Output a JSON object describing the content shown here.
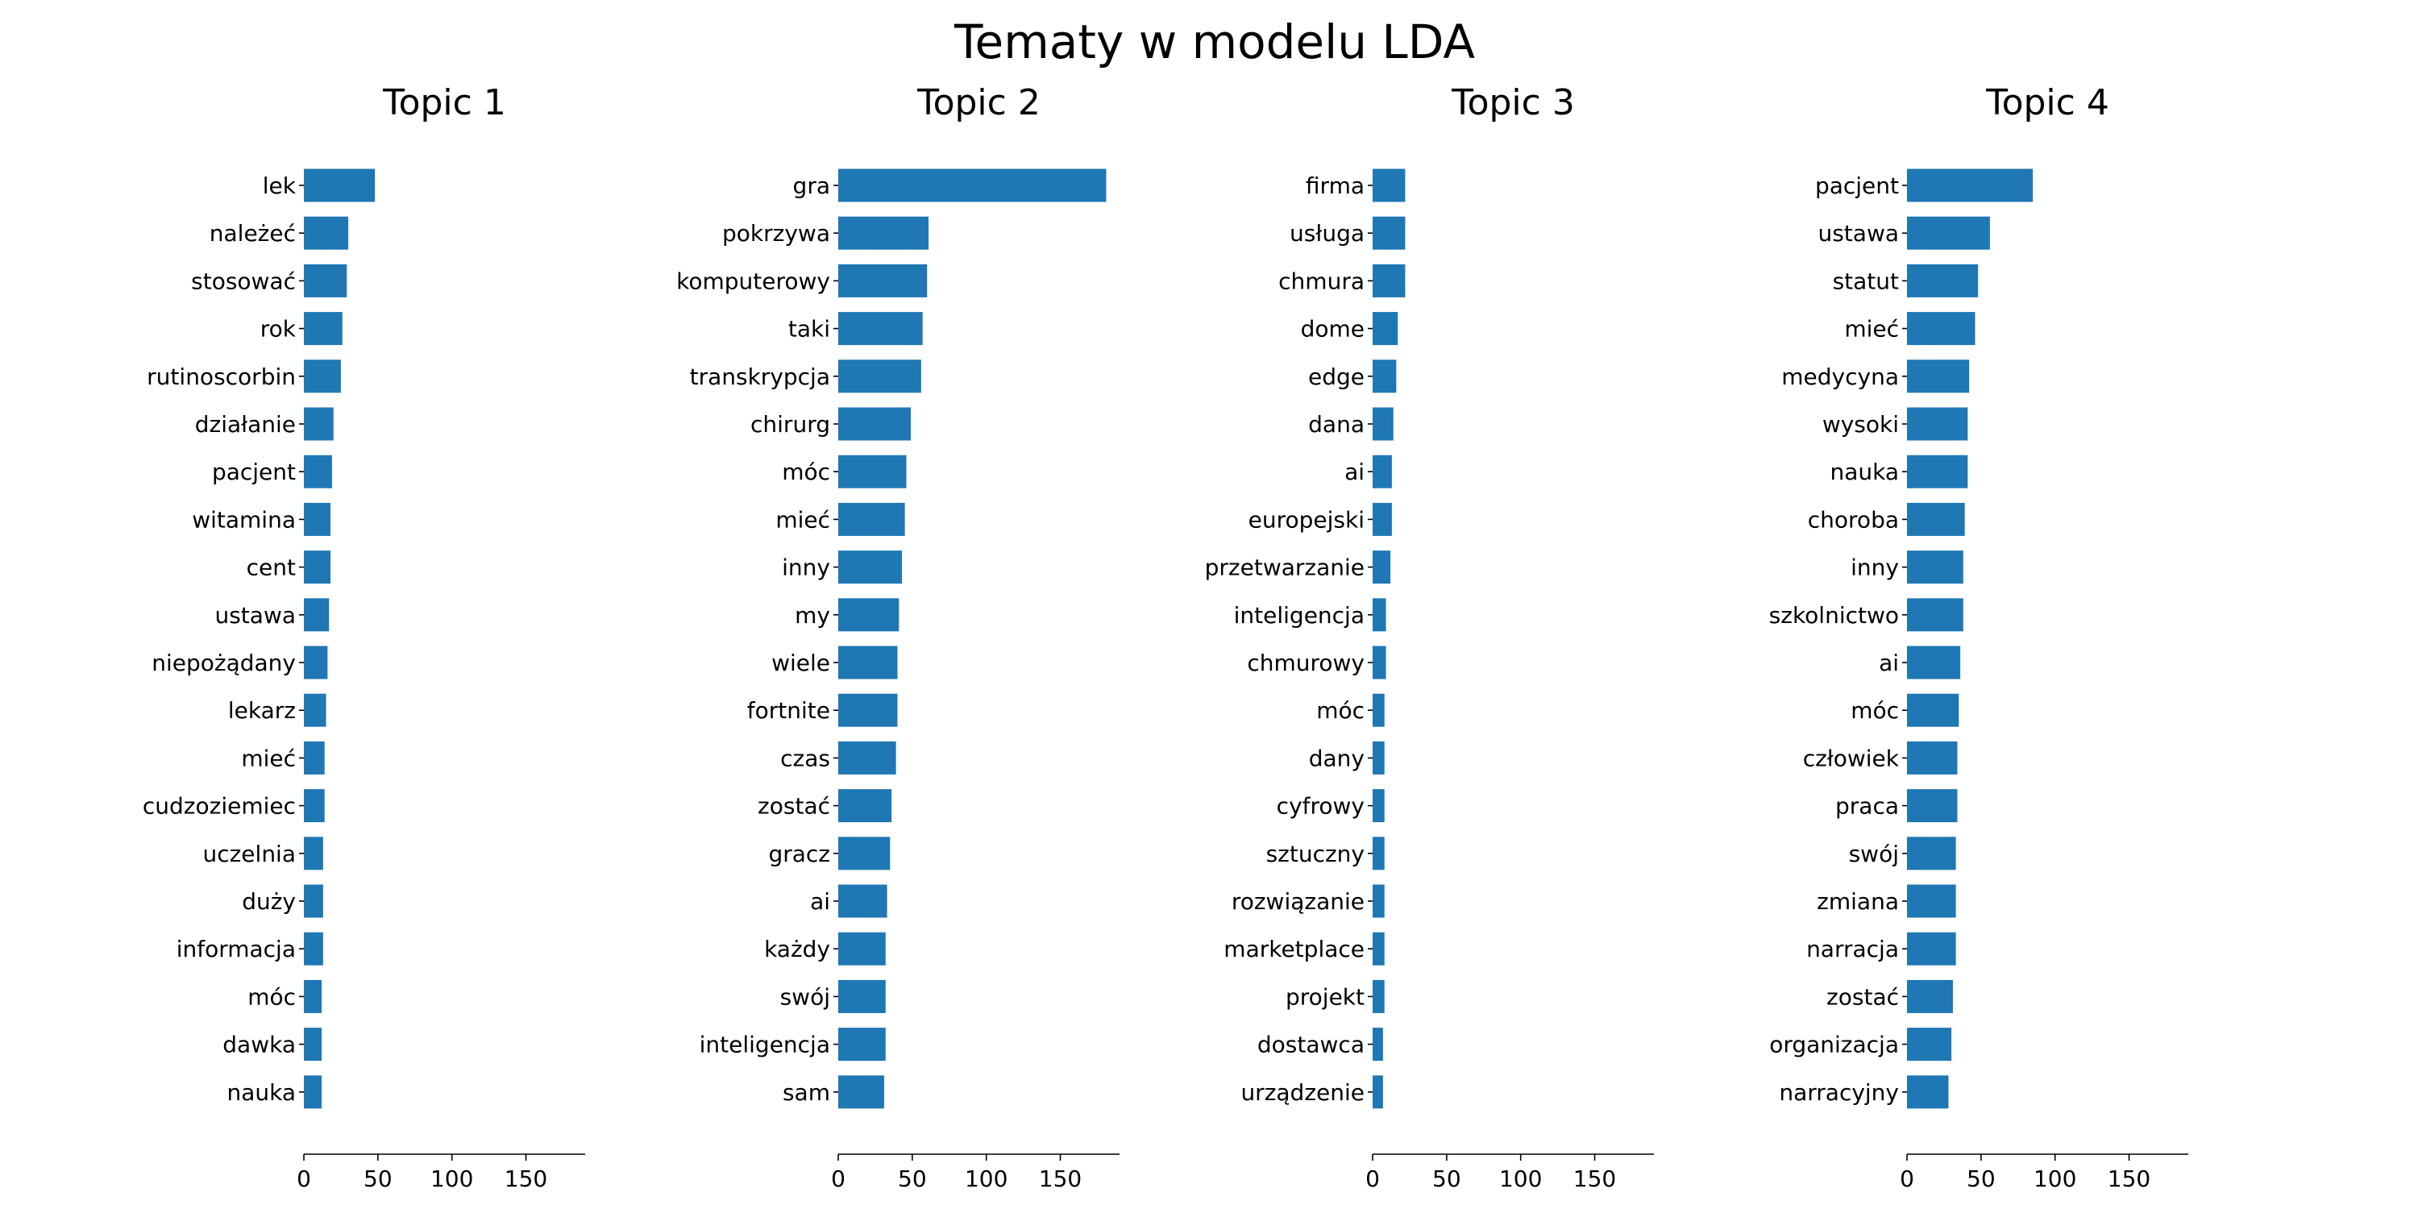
{
  "title": "Tematy w modelu LDA",
  "colors": {
    "bar": "#1f77b4"
  },
  "chart_data": [
    {
      "type": "bar",
      "orientation": "horizontal",
      "title": "Topic 1",
      "xlim": [
        0,
        190
      ],
      "xticks": [
        0,
        50,
        100,
        150
      ],
      "grid": false,
      "categories": [
        "lek",
        "należeć",
        "stosować",
        "rok",
        "rutinoscorbin",
        "działanie",
        "pacjent",
        "witamina",
        "cent",
        "ustawa",
        "niepożądany",
        "lekarz",
        "mieć",
        "cudzoziemiec",
        "uczelnia",
        "duży",
        "informacja",
        "móc",
        "dawka",
        "nauka"
      ],
      "values": [
        48,
        30,
        29,
        26,
        25,
        20,
        19,
        18,
        18,
        17,
        16,
        15,
        14,
        14,
        13,
        13,
        13,
        12,
        12,
        12
      ]
    },
    {
      "type": "bar",
      "orientation": "horizontal",
      "title": "Topic 2",
      "xlim": [
        0,
        190
      ],
      "xticks": [
        0,
        50,
        100,
        150
      ],
      "grid": false,
      "categories": [
        "gra",
        "pokrzywa",
        "komputerowy",
        "taki",
        "transkrypcja",
        "chirurg",
        "móc",
        "mieć",
        "inny",
        "my",
        "wiele",
        "fortnite",
        "czas",
        "zostać",
        "gracz",
        "ai",
        "każdy",
        "swój",
        "inteligencja",
        "sam"
      ],
      "values": [
        181,
        61,
        60,
        57,
        56,
        49,
        46,
        45,
        43,
        41,
        40,
        40,
        39,
        36,
        35,
        33,
        32,
        32,
        32,
        31
      ]
    },
    {
      "type": "bar",
      "orientation": "horizontal",
      "title": "Topic 3",
      "xlim": [
        0,
        190
      ],
      "xticks": [
        0,
        50,
        100,
        150
      ],
      "grid": false,
      "categories": [
        "firma",
        "usługa",
        "chmura",
        "dome",
        "edge",
        "dana",
        "ai",
        "europejski",
        "przetwarzanie",
        "inteligencja",
        "chmurowy",
        "móc",
        "dany",
        "cyfrowy",
        "sztuczny",
        "rozwiązanie",
        "marketplace",
        "projekt",
        "dostawca",
        "urządzenie"
      ],
      "values": [
        22,
        22,
        22,
        17,
        16,
        14,
        13,
        13,
        12,
        9,
        9,
        8,
        8,
        8,
        8,
        8,
        8,
        8,
        7,
        7
      ]
    },
    {
      "type": "bar",
      "orientation": "horizontal",
      "title": "Topic 4",
      "xlim": [
        0,
        190
      ],
      "xticks": [
        0,
        50,
        100,
        150
      ],
      "grid": false,
      "categories": [
        "pacjent",
        "ustawa",
        "statut",
        "mieć",
        "medycyna",
        "wysoki",
        "nauka",
        "choroba",
        "inny",
        "szkolnictwo",
        "ai",
        "móc",
        "człowiek",
        "praca",
        "swój",
        "zmiana",
        "narracja",
        "zostać",
        "organizacja",
        "narracyjny"
      ],
      "values": [
        85,
        56,
        48,
        46,
        42,
        41,
        41,
        39,
        38,
        38,
        36,
        35,
        34,
        34,
        33,
        33,
        33,
        31,
        30,
        28
      ]
    }
  ]
}
